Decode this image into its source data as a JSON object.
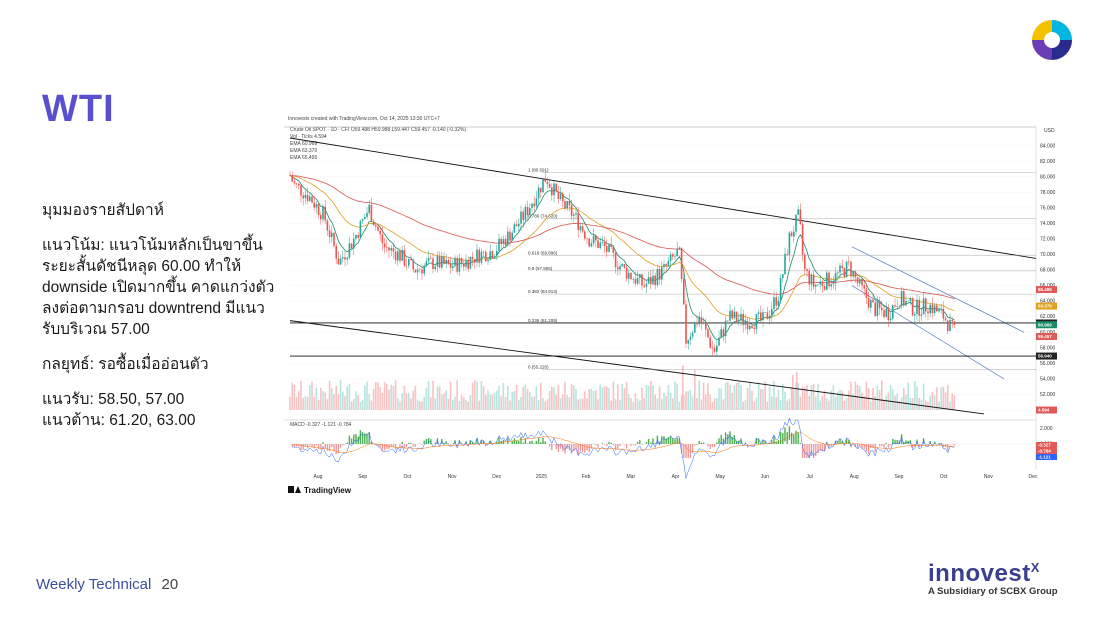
{
  "page": {
    "title": "WTI",
    "outlook": {
      "heading": "มุมมองรายสัปดาห์",
      "trend": "แนวโน้ม: แนวโน้มหลักเป็นขาขึ้น ระยะสั้นดัชนีหลุด 60.00 ทำให้ downside เปิดมากขึ้น คาดแกว่งตัวลงต่อตามกรอบ downtrend มีแนวรับบริเวณ 57.00",
      "strategy": "กลยุทธ์: รอซื้อเมื่ออ่อนตัว",
      "support": "แนวรับ: 58.50, 57.00",
      "resistance": "แนวต้าน: 61.20, 63.00"
    },
    "footer": {
      "label": "Weekly Technical",
      "page_number": "20"
    },
    "brand": {
      "name": "innovest",
      "mark": "X",
      "subtitle": "A Subsidiary of SCBX Group"
    }
  },
  "chart_data": {
    "type": "candlestick",
    "header": "Innovestx created with TradingView.com, Oct 14, 2025 13:30 UTC+7",
    "symbol_line": "Crude Oil SPOT · 1D · CFI  O59.488 H59.988 L59.447 C59.457 -0.140 (-0.32%)",
    "indicator_lines": [
      "Vol · Ticks  4.594",
      "EMA 60.969",
      "EMA 63.370",
      "EMA 65.495"
    ],
    "currency": "USD",
    "watermark": "TradingView",
    "x_labels": [
      "Aug",
      "Sep",
      "Oct",
      "Nov",
      "Dec",
      "2025",
      "Feb",
      "Mar",
      "Apr",
      "May",
      "Jun",
      "Jul",
      "Aug",
      "Sep",
      "Oct",
      "Nov",
      "Dec"
    ],
    "y_ticks": [
      "84.000",
      "82.000",
      "80.000",
      "78.000",
      "76.000",
      "74.000",
      "72.000",
      "70.000",
      "68.000",
      "66.000",
      "64.000",
      "62.000",
      "60.000",
      "58.000",
      "56.000",
      "54.000",
      "52.000",
      "50.000"
    ],
    "ylim": [
      50,
      85
    ],
    "fib_levels": [
      {
        "label": "1 (80.591)",
        "value": 80.591
      },
      {
        "label": "0.786 (74.620)",
        "value": 74.62
      },
      {
        "label": "0.618 (69.896)",
        "value": 69.896
      },
      {
        "label": "0.5 (67.905)",
        "value": 67.905
      },
      {
        "label": "0.382 (64.913)",
        "value": 64.913
      },
      {
        "label": "0.236 (61.209)",
        "value": 61.209
      },
      {
        "label": "0 (55.220)",
        "value": 55.22
      }
    ],
    "horizontal_levels": [
      61.2,
      56.94
    ],
    "price_tags": [
      {
        "label": "65.495",
        "value": 65.495,
        "color": "#e05a5a"
      },
      {
        "label": "63.370",
        "value": 63.37,
        "color": "#e0a020"
      },
      {
        "label": "61.200",
        "value": 61.2,
        "color": "#222222"
      },
      {
        "label": "60.969",
        "value": 60.969,
        "color": "#1a8a6a"
      },
      {
        "label": "59.457",
        "value": 59.457,
        "color": "#e05a5a"
      },
      {
        "label": "56.940",
        "value": 56.94,
        "color": "#222222"
      }
    ],
    "volume_tag": "4.594",
    "macd": {
      "label": "MACD  -0.327  -1.121  -0.784",
      "ticks": [
        "2.000",
        "0.000"
      ],
      "tags": [
        {
          "label": "-0.327",
          "color": "#e05a5a"
        },
        {
          "label": "-0.784",
          "color": "#e05a5a"
        },
        {
          "label": "-1.121",
          "color": "#2962ff"
        }
      ]
    }
  }
}
